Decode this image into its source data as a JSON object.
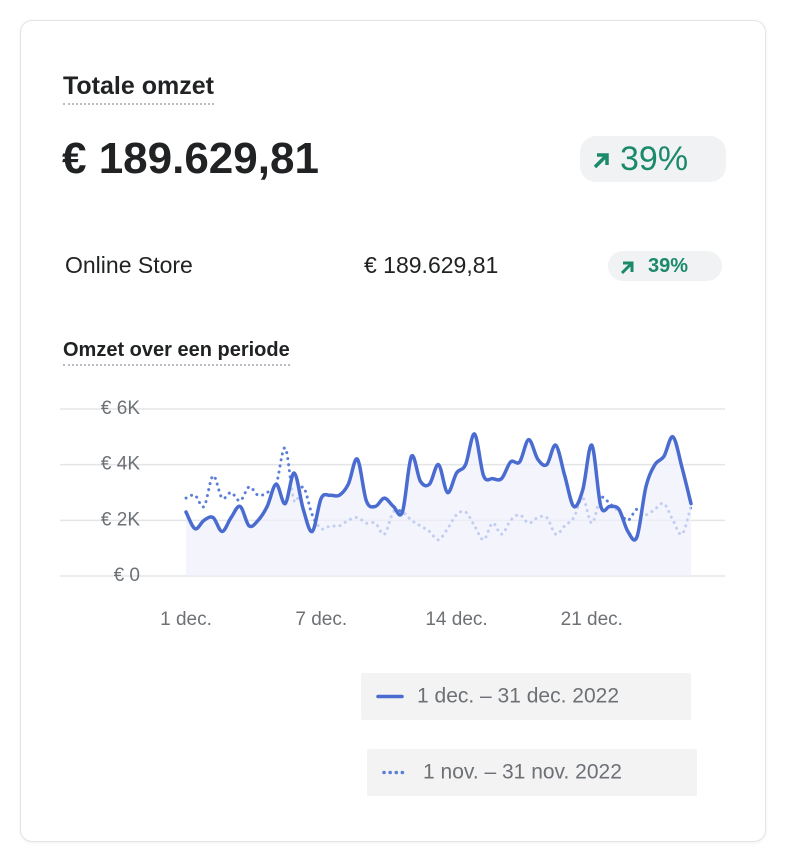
{
  "card": {
    "title": "Totale omzet",
    "total": "€ 189.629,81",
    "change": "39%",
    "rows": [
      {
        "name": "Online Store",
        "value": "€ 189.629,81",
        "change": "39%"
      }
    ]
  },
  "chart_data": {
    "type": "line",
    "title": "Omzet over een periode",
    "categories": [
      "1 dec.",
      null,
      null,
      null,
      null,
      null,
      null,
      null,
      null,
      null,
      null,
      null,
      null,
      null,
      null,
      "7 dec.",
      null,
      null,
      null,
      null,
      null,
      null,
      null,
      null,
      null,
      null,
      null,
      null,
      null,
      null,
      "14 dec.",
      null,
      null,
      null,
      null,
      null,
      null,
      null,
      null,
      null,
      null,
      null,
      null,
      null,
      null,
      "21 dec.",
      null,
      null,
      null,
      null,
      null,
      null,
      null,
      null,
      null,
      null,
      null
    ],
    "series": [
      {
        "name": "1 dec. – 31 dec. 2022",
        "color": "#4a6bd0",
        "dash": "solid",
        "values": [
          2300,
          1700,
          2000,
          2100,
          1600,
          2100,
          2500,
          1800,
          2000,
          2500,
          3300,
          2600,
          3700,
          2400,
          1600,
          2800,
          2900,
          2900,
          3300,
          4200,
          2700,
          2500,
          2800,
          2500,
          2300,
          4300,
          3400,
          3300,
          4000,
          3000,
          3700,
          4000,
          5100,
          3600,
          3500,
          3500,
          4100,
          4100,
          4900,
          4200,
          4000,
          4700,
          3600,
          2500,
          3100,
          4700,
          2500,
          2500,
          2400,
          1600,
          1400,
          3200,
          4000,
          4300,
          5000,
          3900,
          2600
        ]
      },
      {
        "name": "1 nov. – 31 nov. 2022",
        "color": "#5b7fd9",
        "dash": "dotted",
        "values": [
          2800,
          2900,
          2500,
          3600,
          2800,
          3000,
          2700,
          3200,
          2900,
          3000,
          3300,
          4600,
          2700,
          3200,
          2200,
          1700,
          1800,
          1800,
          2000,
          2100,
          1900,
          1900,
          1500,
          2300,
          2300,
          2000,
          1800,
          1600,
          1300,
          1700,
          2200,
          2300,
          1800,
          1300,
          1900,
          1500,
          2000,
          2200,
          1900,
          2100,
          2100,
          1500,
          1800,
          2100,
          2800,
          1900,
          2800,
          2600,
          2300,
          2000,
          2400,
          2200,
          2400,
          2600,
          2000,
          1500,
          2500
        ]
      }
    ],
    "ylim": [
      0,
      6000
    ],
    "yticks": [
      {
        "value": 0,
        "label": "€ 0"
      },
      {
        "value": 2000,
        "label": "€ 2K"
      },
      {
        "value": 4000,
        "label": "€ 4K"
      },
      {
        "value": 6000,
        "label": "€ 6K"
      }
    ],
    "grid": true
  }
}
